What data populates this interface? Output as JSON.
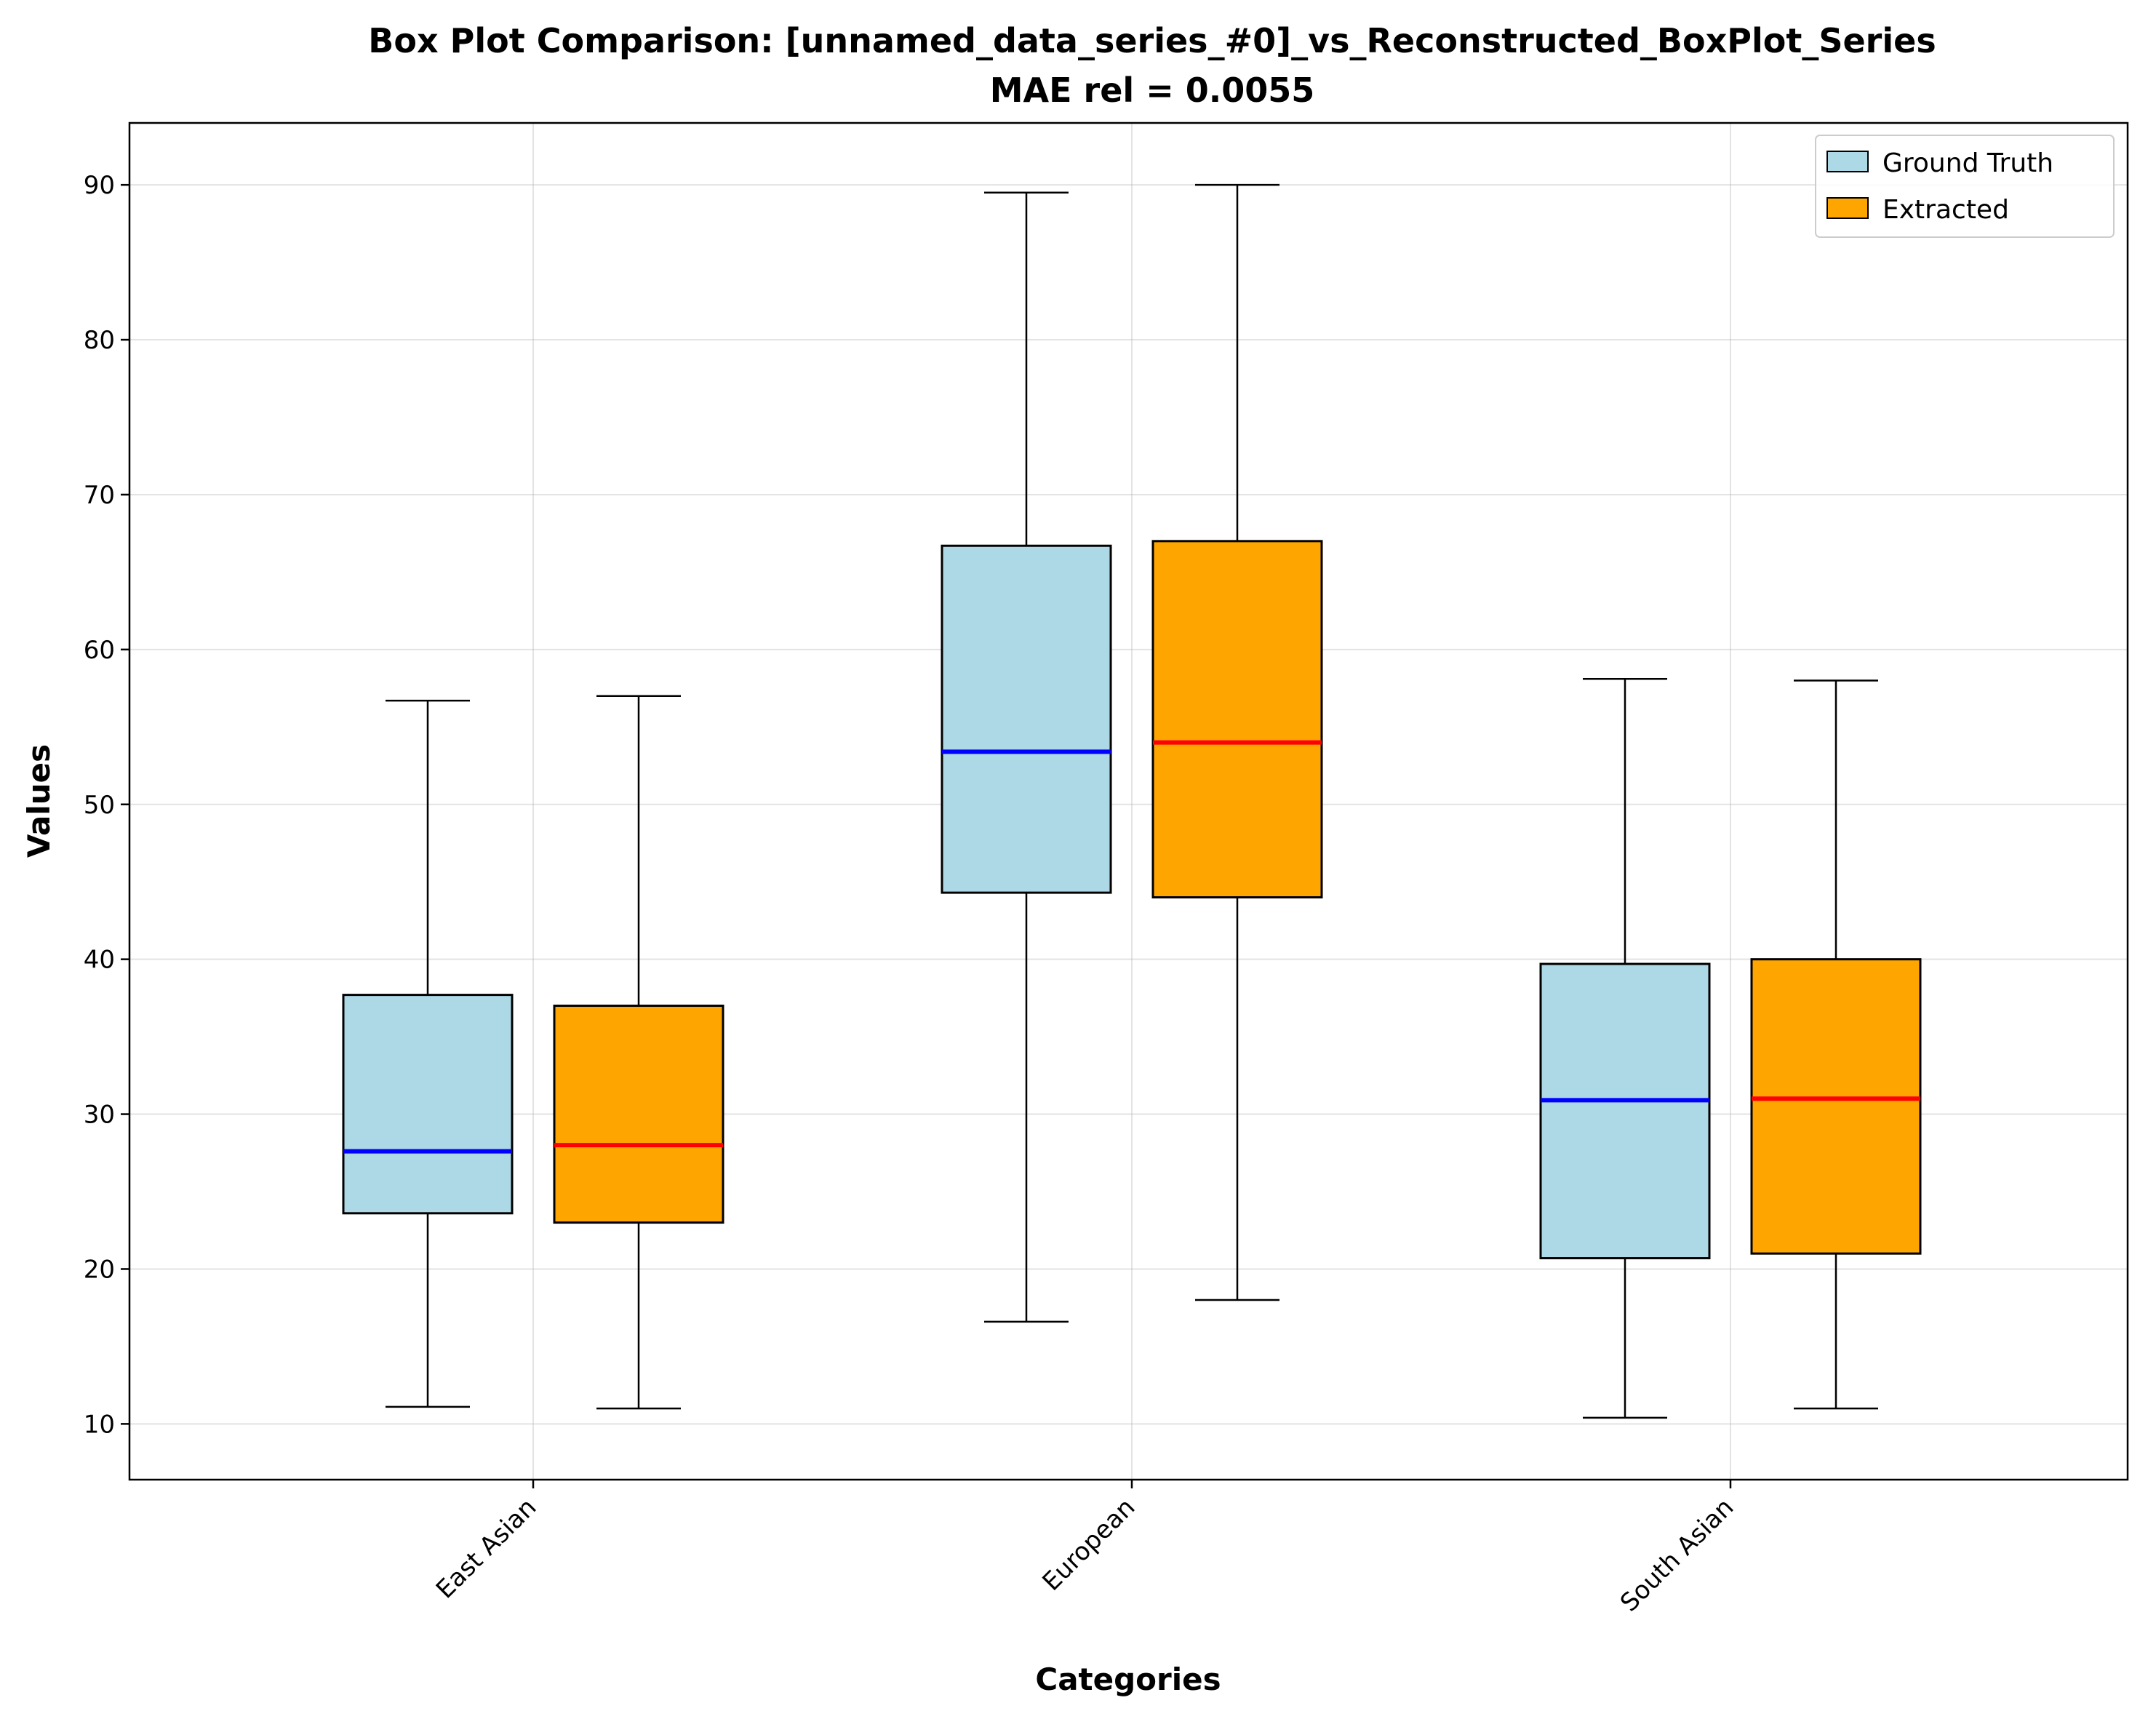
{
  "chart_data": {
    "type": "box",
    "title": "Box Plot Comparison: [unnamed_data_series_#0]_vs_Reconstructed_BoxPlot_Series",
    "subtitle": "MAE rel = 0.0055",
    "xlabel": "Categories",
    "ylabel": "Values",
    "categories": [
      "East Asian",
      "European",
      "South Asian"
    ],
    "ylim": [
      6.4,
      94.0
    ],
    "yticks": [
      10,
      20,
      30,
      40,
      50,
      60,
      70,
      80,
      90
    ],
    "ytick_labels": [
      "10",
      "20",
      "30",
      "40",
      "50",
      "60",
      "70",
      "80",
      "90"
    ],
    "grid": true,
    "legend_position": "top-right",
    "series": [
      {
        "name": "Ground Truth",
        "fill": "#add8e6",
        "median_color": "#0000ff",
        "boxes": [
          {
            "min": 11.1,
            "q1": 23.6,
            "median": 27.6,
            "q3": 37.7,
            "max": 56.7
          },
          {
            "min": 16.6,
            "q1": 44.3,
            "median": 53.4,
            "q3": 66.7,
            "max": 89.5
          },
          {
            "min": 10.4,
            "q1": 20.7,
            "median": 30.9,
            "q3": 39.7,
            "max": 58.1
          }
        ]
      },
      {
        "name": "Extracted",
        "fill": "#ffa500",
        "median_color": "#ff0000",
        "boxes": [
          {
            "min": 11.0,
            "q1": 23.0,
            "median": 28.0,
            "q3": 37.0,
            "max": 57.0
          },
          {
            "min": 18.0,
            "q1": 44.0,
            "median": 54.0,
            "q3": 67.0,
            "max": 90.0
          },
          {
            "min": 11.0,
            "q1": 21.0,
            "median": 31.0,
            "q3": 40.0,
            "max": 58.0
          }
        ]
      }
    ]
  }
}
